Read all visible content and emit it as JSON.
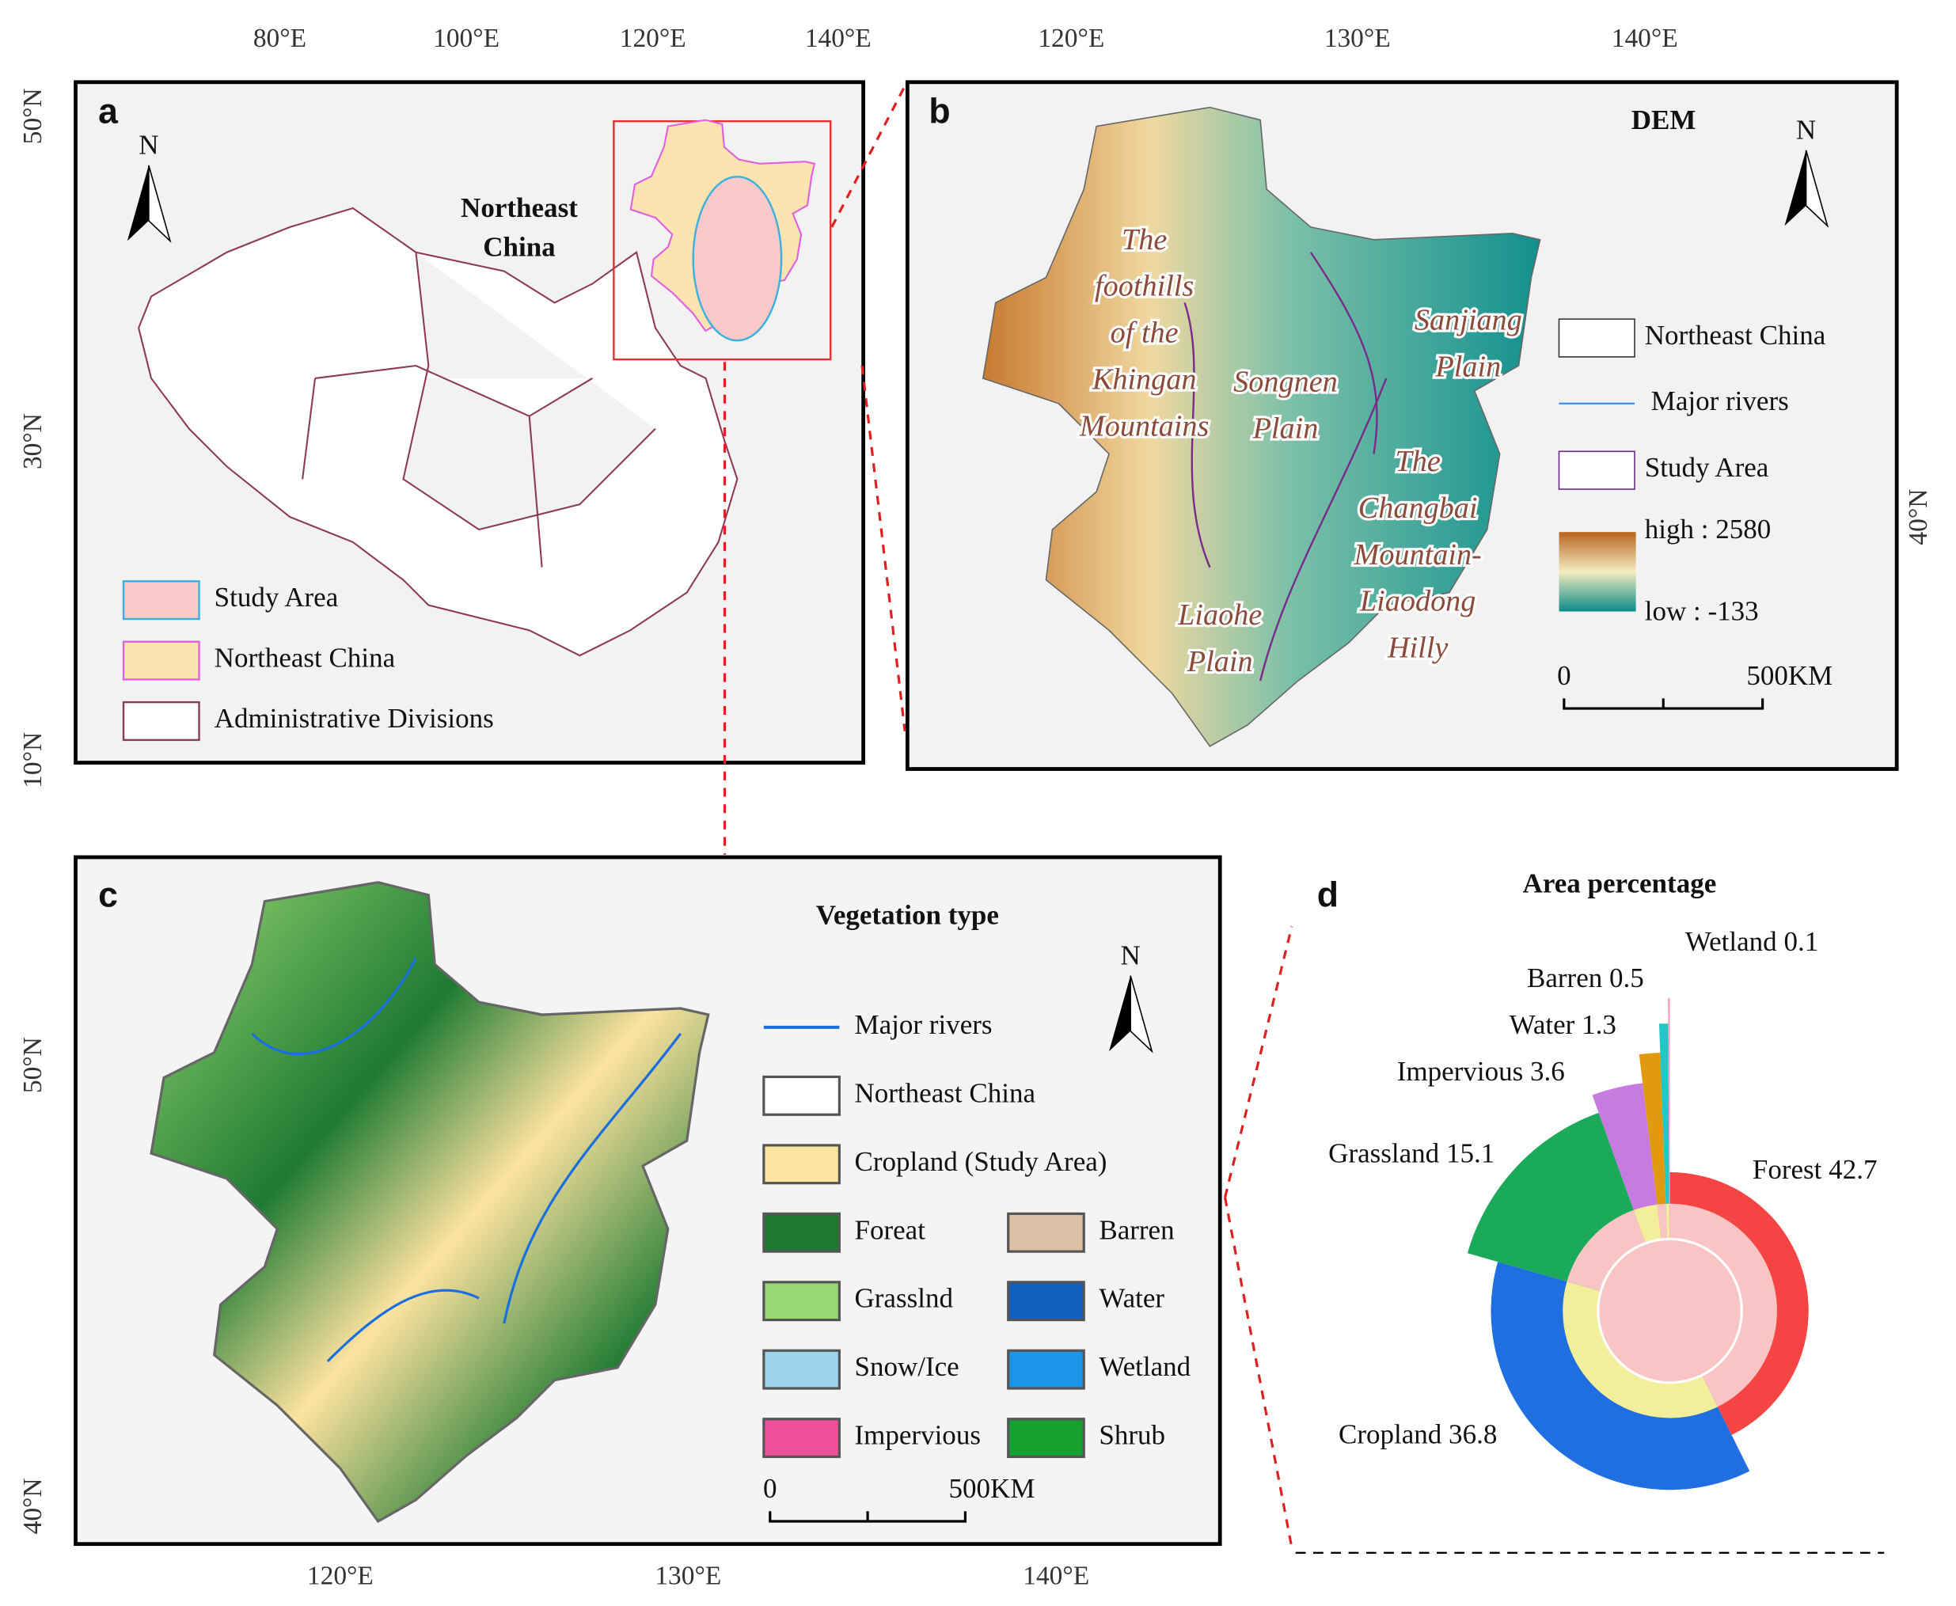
{
  "panels": {
    "a": {
      "letter": "a",
      "lon_ticks": [
        "80°E",
        "100°E",
        "120°E",
        "140°E"
      ],
      "lat_ticks": [
        "50°N",
        "30°N",
        "10°N"
      ],
      "north": "N",
      "region_label": [
        "Northeast",
        "China"
      ],
      "legend": [
        {
          "label": "Study Area",
          "fill": "#f9c9c9",
          "stroke": "#3ab0e0"
        },
        {
          "label": "Northeast China",
          "fill": "#fde3b0",
          "stroke": "#e060e0"
        },
        {
          "label": "Administrative Divisions",
          "fill": "#ffffff",
          "stroke": "#8b3a5a"
        }
      ]
    },
    "b": {
      "letter": "b",
      "title": "DEM",
      "lon_ticks": [
        "120°E",
        "130°E",
        "140°E"
      ],
      "lat_ticks": [
        "40°N"
      ],
      "north": "N",
      "regions": [
        [
          "The",
          "foothills",
          "of the",
          "Khingan",
          "Mountains"
        ],
        [
          "Songnen",
          "Plain"
        ],
        [
          "Sanjiang",
          "Plain"
        ],
        [
          "The",
          "Changbai",
          "Mountain-",
          "Liaodong",
          "Hilly"
        ],
        [
          "Liaohe",
          "Plain"
        ]
      ],
      "legend": [
        "Northeast China",
        "Major rivers",
        "Study Area"
      ],
      "elevation": {
        "high": "high : 2580",
        "low": "low : -133"
      },
      "scale": [
        "0",
        "500KM"
      ]
    },
    "c": {
      "letter": "c",
      "title": "Vegetation type",
      "lon_ticks": [
        "120°E",
        "130°E",
        "140°E"
      ],
      "lat_ticks": [
        "50°N",
        "40°N"
      ],
      "north": "N",
      "legend": [
        {
          "label": "Major rivers",
          "color": "#1a6fe0",
          "kind": "line"
        },
        {
          "label": "Northeast China",
          "color": "#ffffff"
        },
        {
          "label": "Cropland (Study Area)",
          "color": "#fde3a0"
        },
        {
          "label": "Foreat",
          "color": "#1e7a32"
        },
        {
          "label": "Grasslnd",
          "color": "#98d872"
        },
        {
          "label": "Snow/Ice",
          "color": "#9fd3ea"
        },
        {
          "label": "Impervious",
          "color": "#f0509a"
        },
        {
          "label": "Barren",
          "color": "#dcc0a4"
        },
        {
          "label": "Water",
          "color": "#1460c0"
        },
        {
          "label": "Wetland",
          "color": "#1a96e8"
        },
        {
          "label": "Shrub",
          "color": "#16a030"
        }
      ],
      "scale": [
        "0",
        "500KM"
      ]
    }
  },
  "chart_data": {
    "type": "pie",
    "letter": "d",
    "title": "Area percentage",
    "categories": [
      "Forest",
      "Cropland",
      "Grassland",
      "Impervious",
      "Water",
      "Barren",
      "Wetland"
    ],
    "values": [
      42.7,
      36.8,
      15.1,
      3.6,
      1.3,
      0.5,
      0.1
    ],
    "colors": [
      "#f44444",
      "#1f6fe0",
      "#1aaa5a",
      "#c77be0",
      "#e09a10",
      "#20c8c8",
      "#f0a0c0"
    ]
  }
}
